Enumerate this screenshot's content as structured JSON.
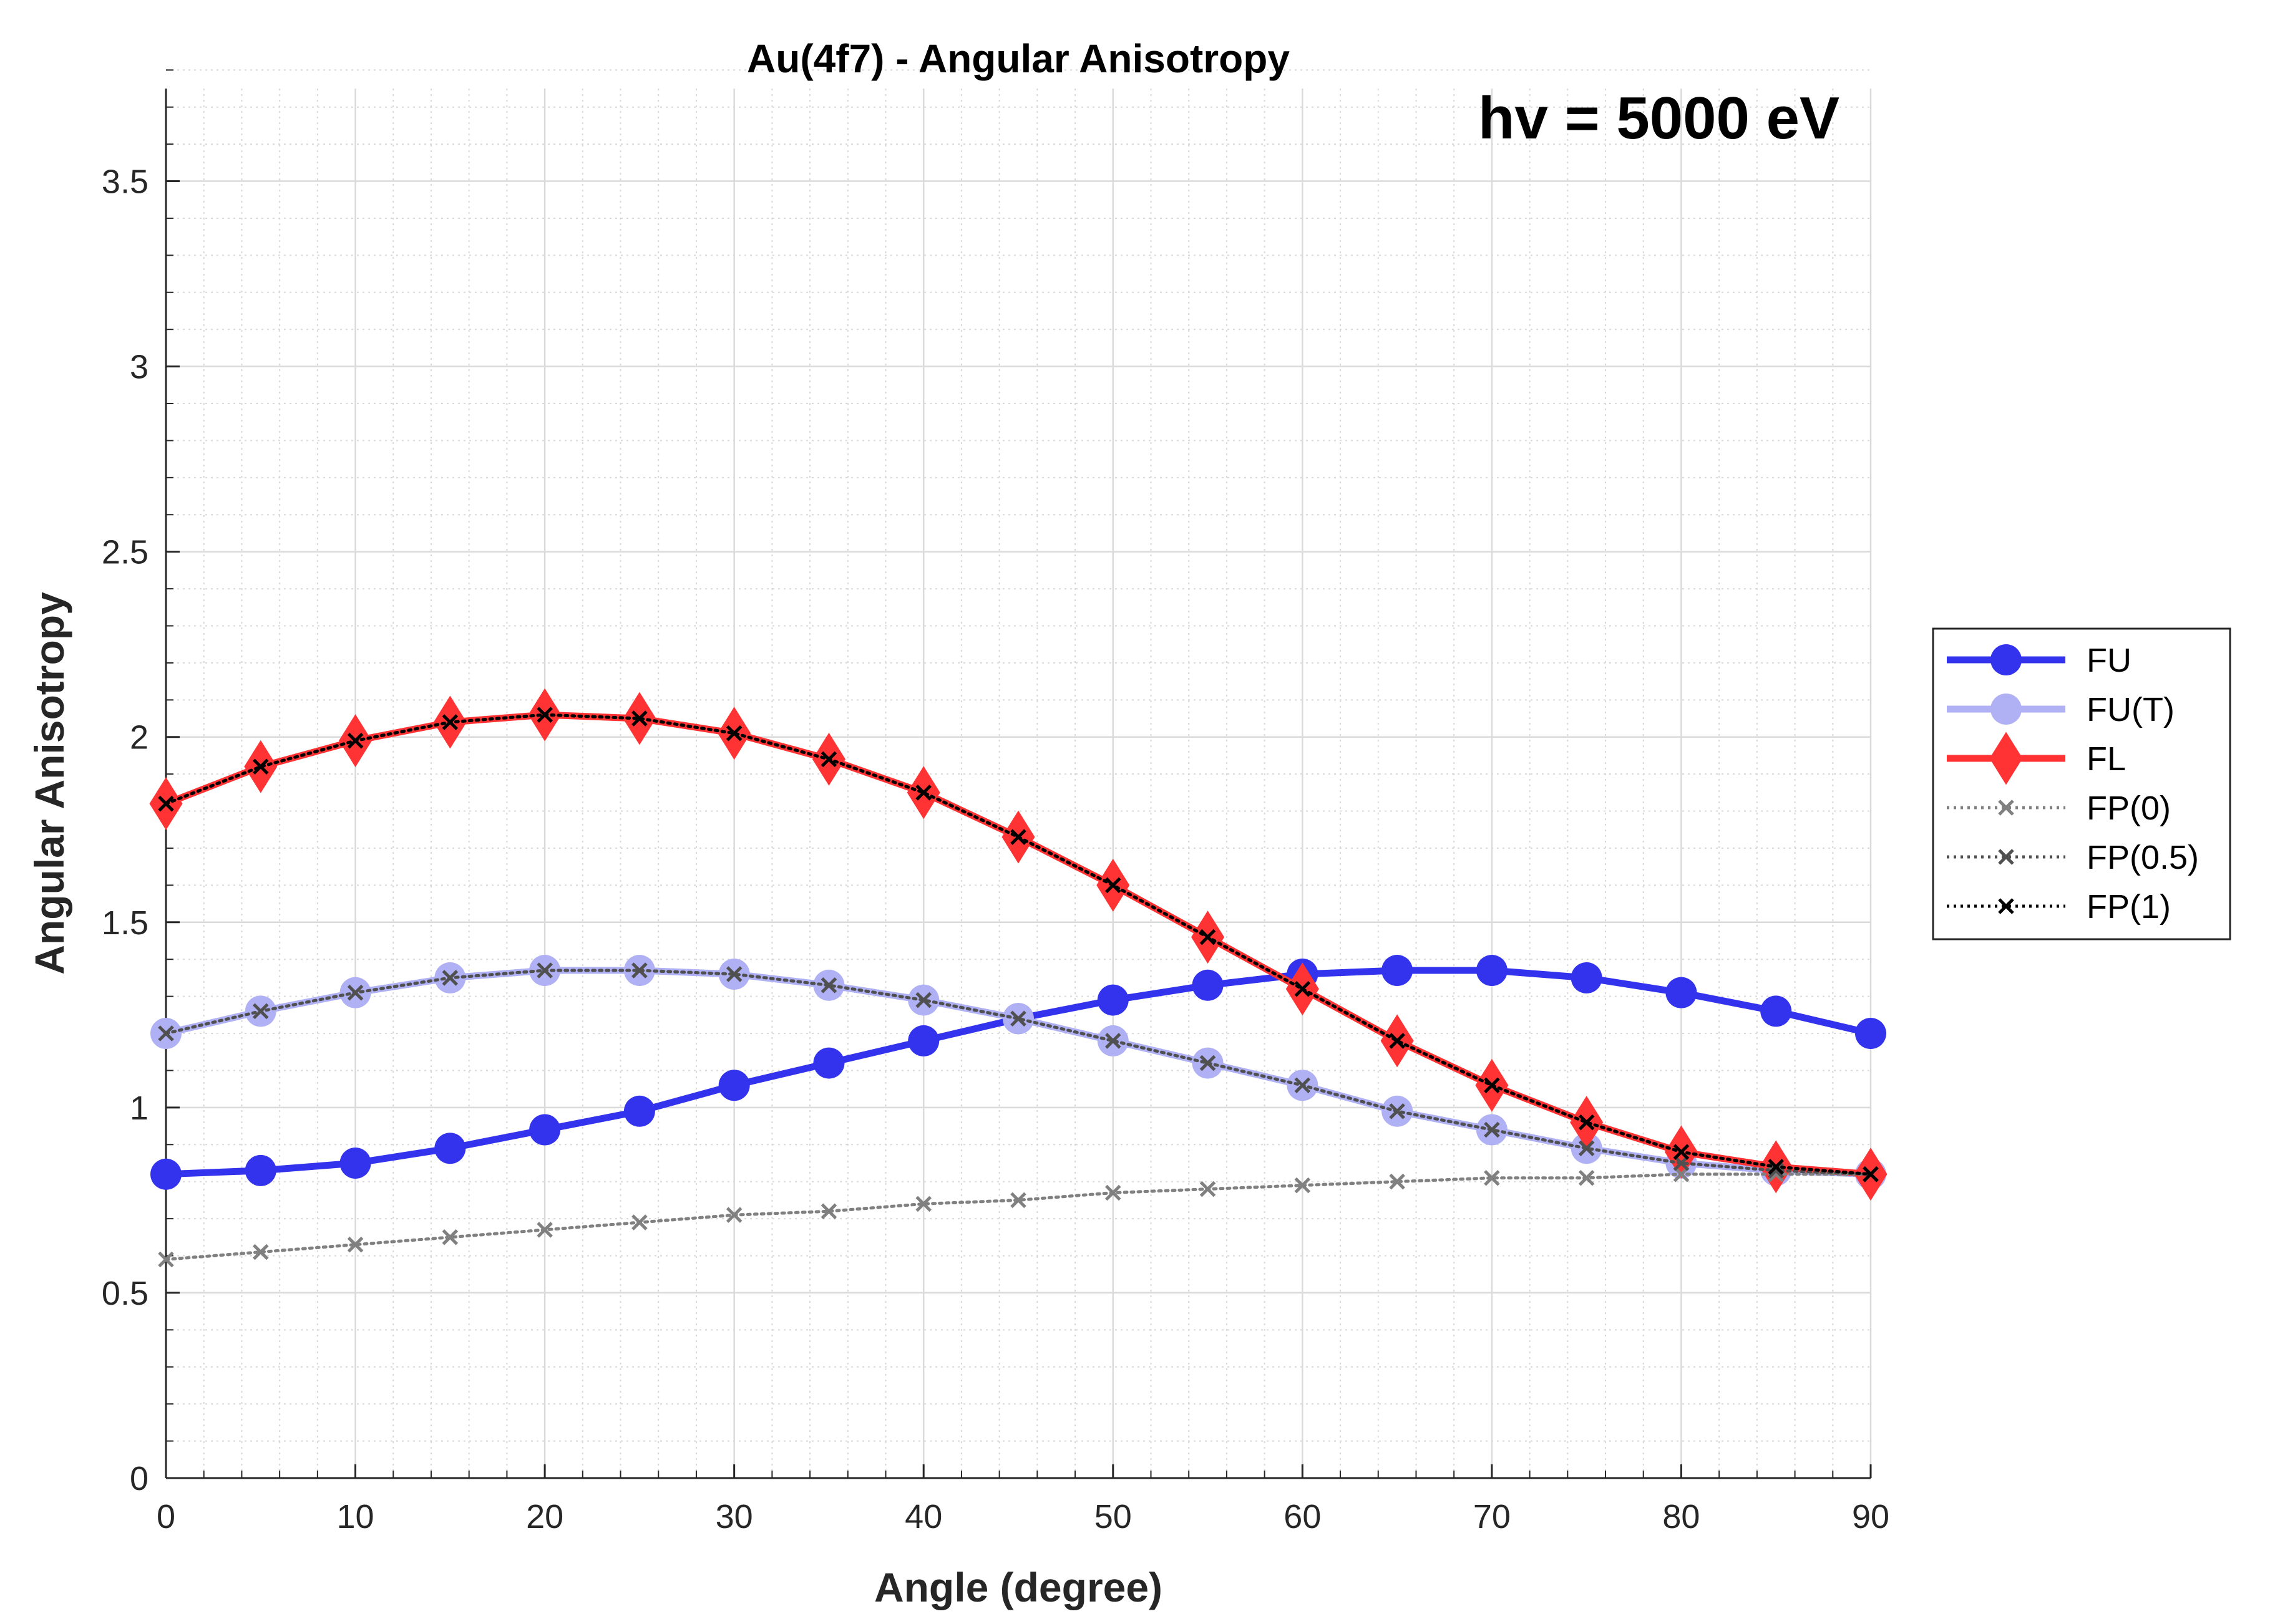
{
  "chart_data": {
    "type": "line",
    "title": "Au(4f7) - Angular Anisotropy",
    "xlabel": "Angle (degree)",
    "ylabel": "Angular Anisotropy",
    "annotation": "hv = 5000 eV",
    "xlim": [
      0,
      90
    ],
    "ylim": [
      0,
      3.75
    ],
    "xticks": [
      0,
      10,
      20,
      30,
      40,
      50,
      60,
      70,
      80,
      90
    ],
    "xtick_labels": [
      "0",
      "10",
      "20",
      "30",
      "40",
      "50",
      "60",
      "70",
      "80",
      "90"
    ],
    "yticks": [
      0,
      0.5,
      1,
      1.5,
      2,
      2.5,
      3,
      3.5
    ],
    "ytick_labels": [
      "0",
      "0.5",
      "1",
      "1.5",
      "2",
      "2.5",
      "3",
      "3.5"
    ],
    "grid": true,
    "minor_grid": true,
    "legend_position": "outside-right",
    "x": [
      0,
      5,
      10,
      15,
      20,
      25,
      30,
      35,
      40,
      45,
      50,
      55,
      60,
      65,
      70,
      75,
      80,
      85,
      90
    ],
    "series": [
      {
        "name": "FU",
        "color": "#3333ee",
        "line": "solid",
        "marker": "circle",
        "values": [
          0.82,
          0.83,
          0.85,
          0.89,
          0.94,
          0.99,
          1.06,
          1.12,
          1.18,
          1.24,
          1.29,
          1.33,
          1.36,
          1.37,
          1.37,
          1.35,
          1.31,
          1.26,
          1.2
        ]
      },
      {
        "name": "FU(T)",
        "color": "#b0b0f5",
        "line": "solid",
        "marker": "circle",
        "values": [
          1.2,
          1.26,
          1.31,
          1.35,
          1.37,
          1.37,
          1.36,
          1.33,
          1.29,
          1.24,
          1.18,
          1.12,
          1.06,
          0.99,
          0.94,
          0.89,
          0.85,
          0.83,
          0.82
        ]
      },
      {
        "name": "FL",
        "color": "#ff3333",
        "line": "solid",
        "marker": "diamond",
        "values": [
          1.82,
          1.92,
          1.99,
          2.04,
          2.06,
          2.05,
          2.01,
          1.94,
          1.85,
          1.73,
          1.6,
          1.46,
          1.32,
          1.18,
          1.06,
          0.96,
          0.88,
          0.84,
          0.82
        ]
      },
      {
        "name": "FP(0)",
        "color": "#808080",
        "line": "dotted",
        "marker": "x",
        "values": [
          0.59,
          0.61,
          0.63,
          0.65,
          0.67,
          0.69,
          0.71,
          0.72,
          0.74,
          0.75,
          0.77,
          0.78,
          0.79,
          0.8,
          0.81,
          0.81,
          0.82,
          0.82,
          0.82
        ]
      },
      {
        "name": "FP(0.5)",
        "color": "#505050",
        "line": "dotted",
        "marker": "x",
        "values": [
          1.2,
          1.26,
          1.31,
          1.35,
          1.37,
          1.37,
          1.36,
          1.33,
          1.29,
          1.24,
          1.18,
          1.12,
          1.06,
          0.99,
          0.94,
          0.89,
          0.85,
          0.83,
          0.82
        ]
      },
      {
        "name": "FP(1)",
        "color": "#000000",
        "line": "dotted",
        "marker": "x",
        "values": [
          1.82,
          1.92,
          1.99,
          2.04,
          2.06,
          2.05,
          2.01,
          1.94,
          1.85,
          1.73,
          1.6,
          1.46,
          1.32,
          1.18,
          1.06,
          0.96,
          0.88,
          0.84,
          0.82
        ]
      }
    ]
  }
}
